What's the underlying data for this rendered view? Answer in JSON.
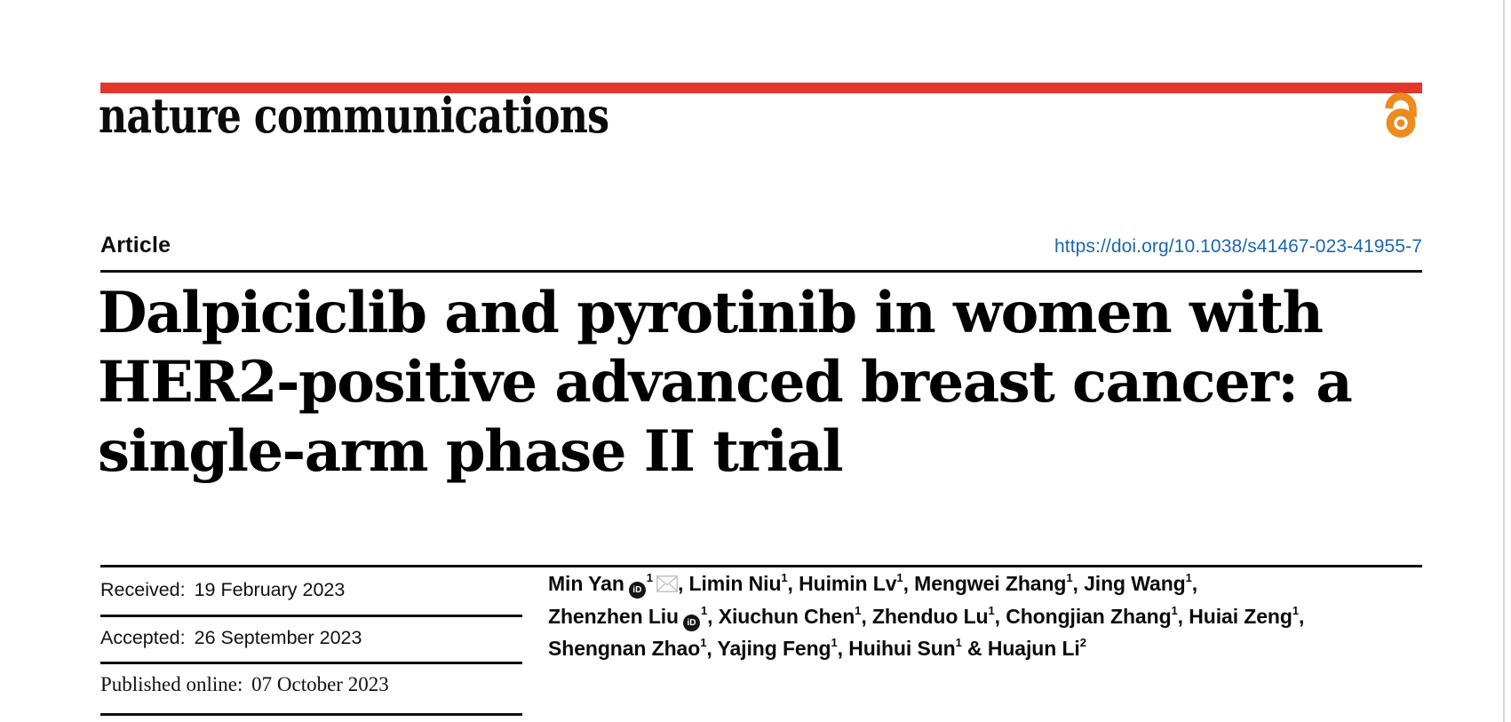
{
  "journal": {
    "name": "nature communications",
    "accent_color": "#e4362b",
    "open_access_color": "#ef8a1c",
    "doi_color": "#1a67b0"
  },
  "article": {
    "type_label": "Article",
    "doi": "https://doi.org/10.1038/s41467-023-41955-7",
    "title_lines": [
      "Dalpiciclib and pyrotinib in women with",
      "HER2-positive advanced breast cancer: a",
      "single-arm phase II trial"
    ]
  },
  "dates": {
    "received": {
      "label": "Received:",
      "value": "19 February 2023"
    },
    "accepted": {
      "label": "Accepted:",
      "value": "26 September 2023"
    },
    "published": {
      "label": "Published online:",
      "value": "07 October 2023"
    }
  },
  "authors": {
    "lines": [
      [
        {
          "name": "Min Yan",
          "orcid": true,
          "sup": "1",
          "email": true,
          "sep": ", "
        },
        {
          "name": "Limin Niu",
          "orcid": false,
          "sup": "1",
          "email": false,
          "sep": ", "
        },
        {
          "name": "Huimin Lv",
          "orcid": false,
          "sup": "1",
          "email": false,
          "sep": ", "
        },
        {
          "name": "Mengwei Zhang",
          "orcid": false,
          "sup": "1",
          "email": false,
          "sep": ", "
        },
        {
          "name": "Jing Wang",
          "orcid": false,
          "sup": "1",
          "email": false,
          "sep": ","
        }
      ],
      [
        {
          "name": "Zhenzhen Liu",
          "orcid": true,
          "sup": "1",
          "email": false,
          "sep": ", "
        },
        {
          "name": "Xiuchun Chen",
          "orcid": false,
          "sup": "1",
          "email": false,
          "sep": ", "
        },
        {
          "name": "Zhenduo Lu",
          "orcid": false,
          "sup": "1",
          "email": false,
          "sep": ", "
        },
        {
          "name": "Chongjian Zhang",
          "orcid": false,
          "sup": "1",
          "email": false,
          "sep": ", "
        },
        {
          "name": "Huiai Zeng",
          "orcid": false,
          "sup": "1",
          "email": false,
          "sep": ","
        }
      ],
      [
        {
          "name": "Shengnan Zhao",
          "orcid": false,
          "sup": "1",
          "email": false,
          "sep": ", "
        },
        {
          "name": "Yajing Feng",
          "orcid": false,
          "sup": "1",
          "email": false,
          "sep": ", "
        },
        {
          "name": "Huihui Sun",
          "orcid": false,
          "sup": "1",
          "email": false,
          "sep": " & "
        },
        {
          "name": "Huajun Li",
          "orcid": false,
          "sup": "2",
          "email": false,
          "sep": ""
        }
      ]
    ]
  },
  "icons": {
    "open_access": "open-access-lock-icon",
    "orcid": "orcid-id-icon",
    "email": "email-envelope-icon"
  }
}
